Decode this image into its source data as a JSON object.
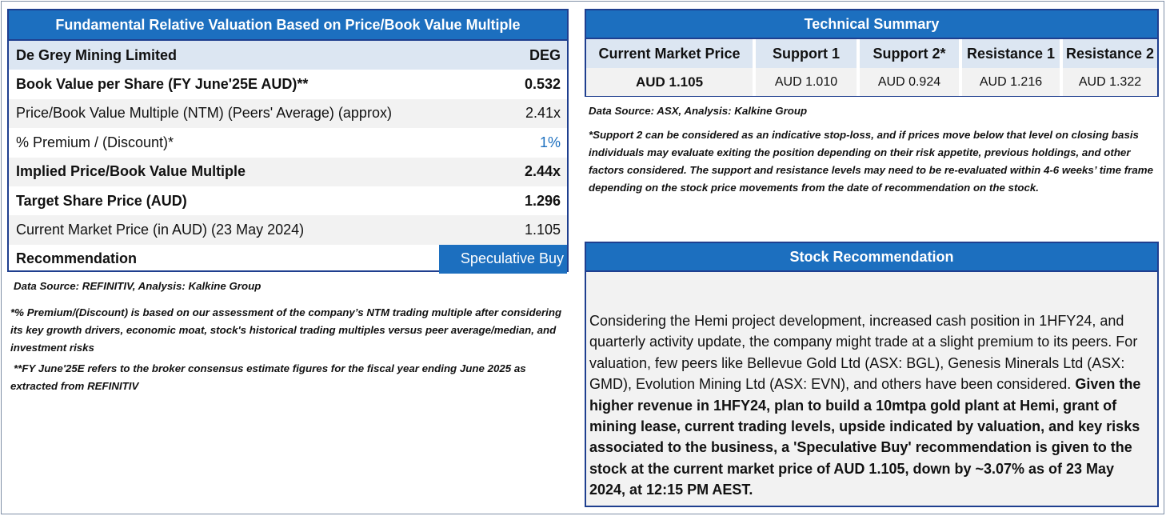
{
  "valuation": {
    "title": "Fundamental Relative Valuation Based on Price/Book Value Multiple",
    "header": {
      "label": "De Grey Mining Limited",
      "value": "DEG"
    },
    "rows": [
      {
        "label": "Book Value per Share (FY June'25E AUD)**",
        "value": "0.532"
      },
      {
        "label": "Price/Book Value Multiple (NTM)  (Peers' Average) (approx)",
        "value": "2.41x"
      },
      {
        "label": "% Premium / (Discount)*",
        "value": "1%"
      },
      {
        "label": "Implied Price/Book Value Multiple",
        "value": "2.44x"
      },
      {
        "label": "Target Share Price (AUD)",
        "value": "1.296"
      },
      {
        "label": "Current Market Price (in AUD) (23 May 2024)",
        "value": "1.105"
      },
      {
        "label": "Recommendation",
        "value": "Speculative Buy"
      }
    ],
    "source": "Data Source: REFINITIV, Analysis: Kalkine Group",
    "note1": "*% Premium/(Discount) is based on our assessment of the company’s NTM trading multiple after considering its key growth drivers, economic moat, stock's historical trading multiples versus peer average/median, and investment risks",
    "note2": "**FY June'25E refers to the broker consensus estimate figures for the fiscal year ending June 2025 as extracted from REFINITIV"
  },
  "technical": {
    "title": "Technical Summary",
    "columns": [
      {
        "header": "Current Market Price",
        "value": "AUD 1.105"
      },
      {
        "header": "Support 1",
        "value": "AUD 1.010"
      },
      {
        "header": "Support 2*",
        "value": "AUD 0.924"
      },
      {
        "header": "Resistance 1",
        "value": "AUD 1.216"
      },
      {
        "header": "Resistance 2",
        "value": "AUD 1.322"
      }
    ],
    "source": "Data Source: ASX, Analysis: Kalkine Group",
    "note": "*Support 2 can be considered as an indicative stop-loss, and if prices move below that level on closing basis individuals may evaluate exiting the position depending on their risk appetite, previous holdings, and other factors considered. The support and resistance levels may need to be re-evaluated within 4-6 weeks’ time frame depending on the stock price movements from the date of recommendation on the stock."
  },
  "recommendation": {
    "title": "Stock Recommendation",
    "text_normal": "Considering the Hemi project development, increased cash position in 1HFY24, and quarterly activity update, the company might trade at a slight premium to its peers. For valuation, few peers like Bellevue Gold Ltd (ASX: BGL), Genesis Minerals Ltd (ASX: GMD), Evolution Mining Ltd (ASX: EVN), and others have been considered. ",
    "text_bold": "Given the higher revenue in 1HFY24, plan to build a 10mtpa gold plant at Hemi, grant of mining lease, current trading levels, upside indicated by valuation, and key risks associated to the business, a 'Speculative Buy' recommendation is given to the stock at the current market price of AUD 1.105, down by ~3.07%  as of 23 May 2024, at 12:15 PM AEST."
  },
  "colors": {
    "accent": "#1c6fbf",
    "border": "#1f3f8f",
    "header_bg": "#dce6f2",
    "alt_bg": "#f2f2f2",
    "premium_value": "#1c6fbf"
  }
}
